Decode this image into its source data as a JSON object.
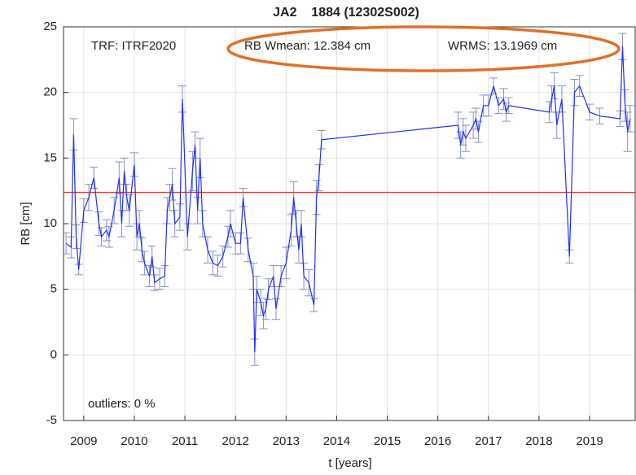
{
  "chart_data": {
    "type": "line",
    "title": "JA2    1884 (12302S002)",
    "x_label": "t [years]",
    "y_label": "RB [cm]",
    "annotations": [
      "TRF: ITRF2020",
      "RB Wmean: 12.384 cm",
      "WRMS: 13.1969 cm",
      "outliers: 0 %"
    ],
    "xlim": [
      2008.6,
      2019.9
    ],
    "ylim": [
      -5,
      25
    ],
    "xticks": [
      2009,
      2010,
      2011,
      2012,
      2013,
      2014,
      2015,
      2016,
      2017,
      2018,
      2019
    ],
    "yticks": [
      -5,
      0,
      5,
      10,
      15,
      20,
      25
    ],
    "grid": true,
    "reference_line": {
      "value": 12.384,
      "color": "#ff3030"
    },
    "series": [
      {
        "color": "#1f2fff",
        "error_color": "#6a78b8",
        "x": [
          2008.65,
          2008.75,
          2008.8,
          2008.85,
          2008.9,
          2009.0,
          2009.1,
          2009.2,
          2009.3,
          2009.35,
          2009.45,
          2009.5,
          2009.6,
          2009.7,
          2009.75,
          2009.8,
          2009.85,
          2009.9,
          2010.0,
          2010.05,
          2010.1,
          2010.15,
          2010.2,
          2010.3,
          2010.35,
          2010.4,
          2010.5,
          2010.6,
          2010.65,
          2010.7,
          2010.75,
          2010.8,
          2010.9,
          2010.95,
          2011.05,
          2011.15,
          2011.2,
          2011.25,
          2011.3,
          2011.35,
          2011.45,
          2011.55,
          2011.65,
          2011.75,
          2011.85,
          2011.9,
          2012.0,
          2012.1,
          2012.15,
          2012.25,
          2012.35,
          2012.38,
          2012.42,
          2012.5,
          2012.55,
          2012.6,
          2012.65,
          2012.75,
          2012.8,
          2012.9,
          2013.0,
          2013.1,
          2013.15,
          2013.2,
          2013.25,
          2013.3,
          2013.35,
          2013.45,
          2013.55,
          2013.6,
          2013.65,
          2013.7,
          2016.4,
          2016.45,
          2016.5,
          2016.55,
          2016.7,
          2016.75,
          2016.8,
          2016.9,
          2017.0,
          2017.1,
          2017.2,
          2017.3,
          2017.35,
          2017.4,
          2018.2,
          2018.25,
          2018.3,
          2018.35,
          2018.45,
          2018.6,
          2018.7,
          2018.8,
          2019.0,
          2019.2,
          2019.6,
          2019.65,
          2019.7,
          2019.75,
          2019.8
        ],
        "values": [
          8.5,
          8.2,
          16.8,
          9,
          6.5,
          11,
          12,
          13.5,
          10,
          9,
          9.5,
          9,
          11,
          13.5,
          10,
          14,
          12,
          11,
          14.5,
          9,
          10,
          8,
          7,
          6,
          7.5,
          5.5,
          5.8,
          6,
          11,
          12,
          13,
          10,
          10.5,
          19.5,
          9,
          14,
          16,
          11,
          15,
          10,
          8,
          7,
          6.8,
          7.5,
          9,
          10,
          8.5,
          8.5,
          12,
          8,
          6,
          0.2,
          5,
          4,
          3,
          3.5,
          5,
          6,
          3.5,
          6,
          7,
          9.5,
          12,
          10,
          8,
          10,
          6,
          5.5,
          3.8,
          12,
          13.5,
          16.4,
          17.5,
          16,
          17,
          16.5,
          17.5,
          18,
          17,
          19,
          19,
          20.5,
          19,
          19.5,
          18.5,
          19,
          18.5,
          19.5,
          20.5,
          17.5,
          19.5,
          7.5,
          20,
          20.5,
          18.5,
          18.2,
          18,
          23.5,
          19,
          17,
          18
        ],
        "errors": [
          0.8,
          0.8,
          1.2,
          0.9,
          0.4,
          0.9,
          1,
          0.8,
          0.9,
          0.7,
          0.8,
          0.8,
          1,
          1.2,
          1,
          1,
          1,
          1.2,
          0.9,
          1,
          1,
          0.9,
          0.9,
          0.8,
          0.8,
          0.6,
          0.8,
          0.8,
          1,
          1,
          1.2,
          1,
          1,
          1,
          1,
          1.5,
          1,
          1,
          1.5,
          1,
          1,
          0.9,
          0.8,
          0.8,
          0.8,
          1,
          0.8,
          0.8,
          0.7,
          0.9,
          1,
          1,
          1,
          1,
          1,
          0.8,
          0.8,
          0.8,
          0.8,
          0.8,
          1.2,
          1.2,
          1.2,
          1,
          1,
          1,
          1,
          1,
          0.5,
          1.3,
          1,
          0.7,
          1,
          1,
          1,
          1,
          1,
          0.8,
          0.8,
          0.8,
          0.8,
          0.6,
          0.6,
          0.8,
          0.7,
          0.6,
          0.8,
          1,
          1,
          1,
          1,
          0.5,
          1,
          0.8,
          0.6,
          0.6,
          0.6,
          1,
          1.2,
          1.5,
          1
        ]
      }
    ]
  }
}
